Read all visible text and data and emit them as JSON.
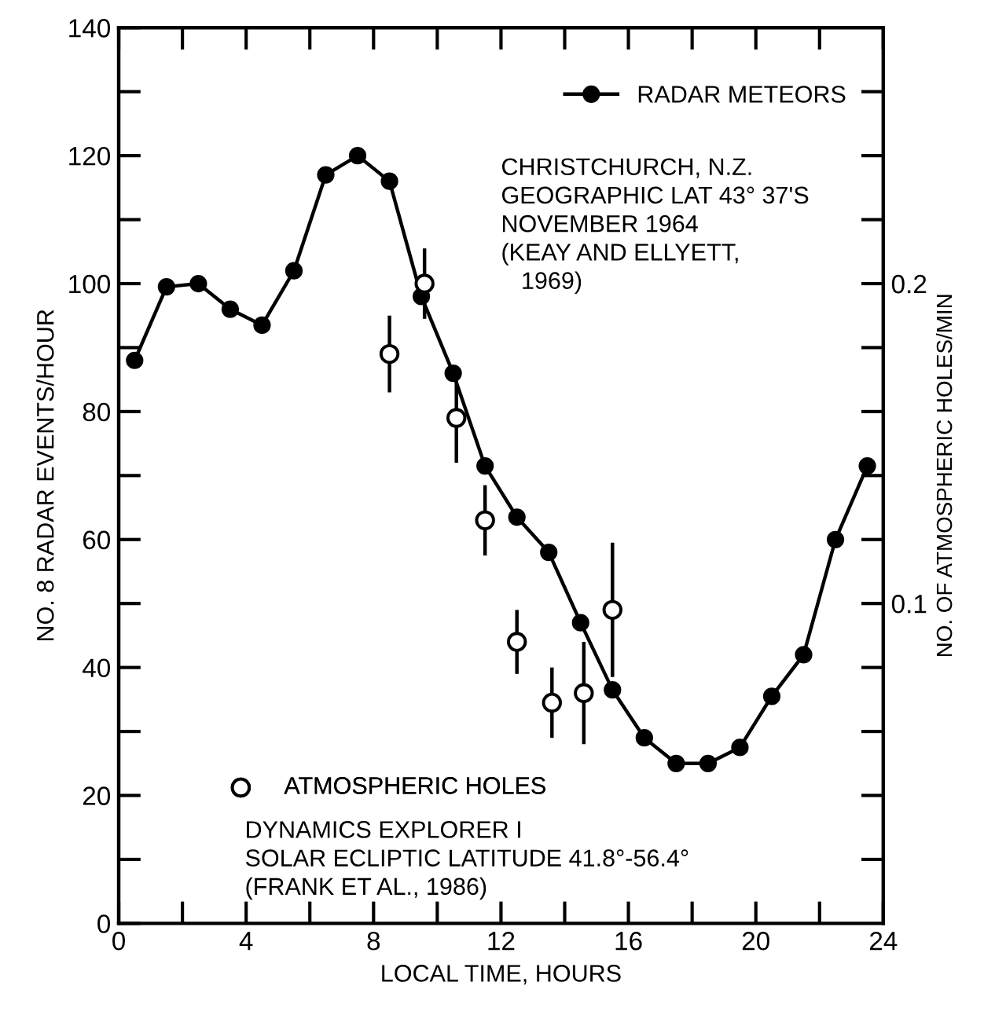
{
  "chart_data": {
    "type": "line",
    "xlabel": "LOCAL TIME, HOURS",
    "ylabel": "NO. 8 RADAR EVENTS/HOUR",
    "y2label": "NO. OF ATMOSPHERIC HOLES/MIN",
    "xlim": [
      0,
      24
    ],
    "xticks": [
      0,
      {
        "value": 2,
        "label": null
      },
      4,
      {
        "value": 6,
        "label": null
      },
      8,
      {
        "value": 10,
        "label": null
      },
      12,
      {
        "value": 14,
        "label": null
      },
      16,
      {
        "value": 18,
        "label": null
      },
      20,
      {
        "value": 22,
        "label": null
      },
      24
    ],
    "ylim": [
      0,
      140
    ],
    "yticks": [
      0,
      {
        "value": 10,
        "label": null
      },
      20,
      {
        "value": 30,
        "label": null
      },
      40,
      {
        "value": 50,
        "label": null
      },
      60,
      {
        "value": 70,
        "label": null
      },
      80,
      {
        "value": 90,
        "label": null
      },
      100,
      {
        "value": 110,
        "label": null
      },
      120,
      {
        "value": 130,
        "label": null
      },
      140
    ],
    "y2lim": [
      0,
      0.28
    ],
    "y2ticks": [
      {
        "value": 0.02,
        "label": null
      },
      {
        "value": 0.04,
        "label": null
      },
      {
        "value": 0.06,
        "label": null
      },
      {
        "value": 0.08,
        "label": null
      },
      {
        "value": 0.1,
        "label": "0.1"
      },
      {
        "value": 0.12,
        "label": null
      },
      {
        "value": 0.14,
        "label": null
      },
      {
        "value": 0.16,
        "label": null
      },
      {
        "value": 0.18,
        "label": null
      },
      {
        "value": 0.2,
        "label": "0.2"
      },
      {
        "value": 0.22,
        "label": null
      },
      {
        "value": 0.24,
        "label": null
      },
      {
        "value": 0.26,
        "label": null
      }
    ],
    "grid": false,
    "legend": "top right",
    "series": [
      {
        "name": "RADAR METEORS",
        "color": "#000000",
        "marker": "circle",
        "line_style": "solid",
        "x": [
          0.5,
          1.5,
          2.5,
          3.5,
          4.5,
          5.5,
          6.5,
          7.5,
          8.5,
          9.5,
          10.5,
          11.5,
          12.5,
          13.5,
          14.5,
          15.5,
          16.5,
          17.5,
          18.5,
          19.5,
          20.5,
          21.5,
          22.5,
          23.5
        ],
        "values": [
          88,
          99.5,
          100,
          96,
          93.5,
          102,
          117,
          120,
          116,
          98,
          86,
          71.5,
          63.5,
          58,
          47,
          36.5,
          29,
          25,
          25,
          27.5,
          35.5,
          42,
          60,
          71.5
        ]
      },
      {
        "name": "ATMOSPHERIC HOLES",
        "type": "scatter",
        "axis": "y2",
        "color": "#000000",
        "marker": "circle",
        "x": [
          8.5,
          9.6,
          10.6,
          11.5,
          12.5,
          13.6,
          14.6,
          15.5
        ],
        "values": [
          0.178,
          0.2,
          0.158,
          0.126,
          0.088,
          0.069,
          0.072,
          0.098
        ],
        "errors": [
          0.012,
          0.011,
          0.014,
          0.011,
          0.01,
          0.011,
          0.016,
          0.021
        ]
      }
    ],
    "annotations": [
      "CHRISTCHURCH, N.Z.\nGEOGRAPHIC LAT 43° 37'S\nNOVEMBER 1964\n(KEAY AND ELLYETT,\n   1969)",
      "DYNAMICS EXPLORER I\nSOLAR ECLIPTIC LATITUDE 41.8°-56.4°\n(FRANK ET AL., 1986)"
    ]
  }
}
